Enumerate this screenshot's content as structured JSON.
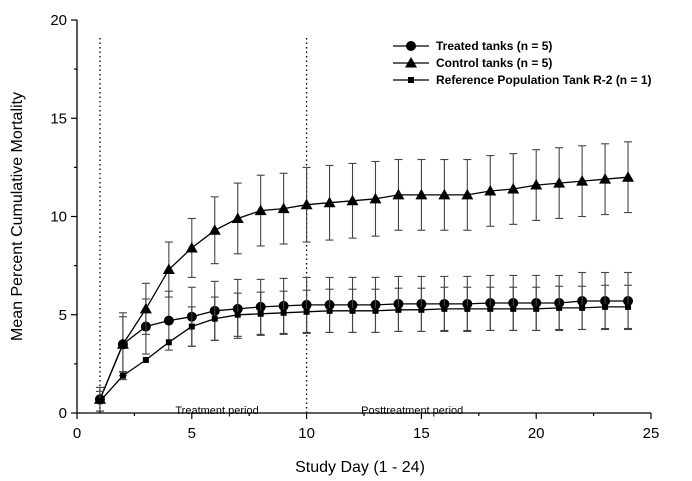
{
  "chart_data": {
    "type": "line",
    "title": "",
    "xlabel": "Study Day (1 - 24)",
    "ylabel": "Mean Percent Cumulative Mortality",
    "xlim": [
      0,
      25
    ],
    "ylim": [
      0,
      20
    ],
    "xticks": [
      0,
      5,
      10,
      15,
      20,
      25
    ],
    "yticks": [
      0,
      5,
      10,
      15,
      20
    ],
    "grid": false,
    "legend_position": "top-right",
    "x": [
      1,
      2,
      3,
      4,
      5,
      6,
      7,
      8,
      9,
      10,
      11,
      12,
      13,
      14,
      15,
      16,
      17,
      18,
      19,
      20,
      21,
      22,
      23,
      24
    ],
    "series": [
      {
        "name": "Treated tanks (n = 5)",
        "marker": "circle",
        "values": [
          0.7,
          3.5,
          4.4,
          4.7,
          4.9,
          5.2,
          5.3,
          5.4,
          5.45,
          5.5,
          5.5,
          5.5,
          5.5,
          5.55,
          5.55,
          5.55,
          5.55,
          5.6,
          5.6,
          5.6,
          5.6,
          5.7,
          5.7,
          5.7
        ],
        "error": [
          0.6,
          1.4,
          1.4,
          1.5,
          1.5,
          1.5,
          1.5,
          1.4,
          1.4,
          1.4,
          1.4,
          1.4,
          1.4,
          1.4,
          1.4,
          1.4,
          1.4,
          1.4,
          1.4,
          1.4,
          1.4,
          1.45,
          1.45,
          1.45
        ]
      },
      {
        "name": "Control tanks (n = 5)",
        "marker": "triangle",
        "values": [
          0.7,
          3.5,
          5.3,
          7.3,
          8.4,
          9.3,
          9.9,
          10.3,
          10.4,
          10.6,
          10.7,
          10.8,
          10.9,
          11.1,
          11.1,
          11.1,
          11.1,
          11.3,
          11.4,
          11.6,
          11.7,
          11.8,
          11.9,
          12.0
        ],
        "error": [
          0.6,
          1.6,
          1.3,
          1.4,
          1.5,
          1.7,
          1.8,
          1.8,
          1.8,
          1.9,
          1.9,
          1.9,
          1.9,
          1.8,
          1.8,
          1.8,
          1.8,
          1.8,
          1.8,
          1.8,
          1.8,
          1.8,
          1.8,
          1.8
        ]
      },
      {
        "name": "Reference Population Tank R-2 (n = 1)",
        "marker": "square",
        "values": [
          0.6,
          1.9,
          2.7,
          3.6,
          4.4,
          4.8,
          5.0,
          5.05,
          5.1,
          5.15,
          5.2,
          5.2,
          5.2,
          5.25,
          5.25,
          5.3,
          5.3,
          5.3,
          5.3,
          5.3,
          5.35,
          5.35,
          5.4,
          5.4
        ],
        "error": [
          0.5,
          0.2,
          0.0,
          0.0,
          1.0,
          1.1,
          1.1,
          1.1,
          1.1,
          1.1,
          1.1,
          1.1,
          1.1,
          1.1,
          1.1,
          1.1,
          1.1,
          1.1,
          1.1,
          1.1,
          1.1,
          1.1,
          1.1,
          1.1
        ]
      }
    ],
    "reference_lines_x": [
      1,
      10
    ],
    "annotations": [
      {
        "text": "Treatment period",
        "x": 6.1,
        "y": -0.05
      },
      {
        "text": "Posttreatment period",
        "x": 14.6,
        "y": -0.05
      }
    ]
  }
}
